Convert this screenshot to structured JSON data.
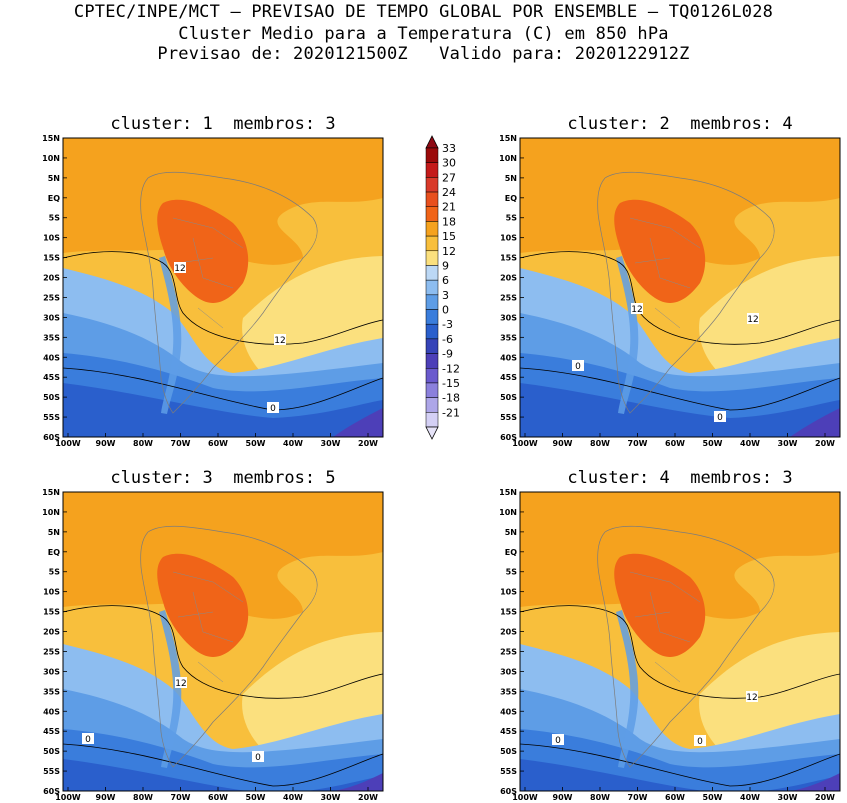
{
  "header": {
    "line1": "CPTEC/INPE/MCT — PREVISAO DE TEMPO GLOBAL POR ENSEMBLE — TQ0126L028",
    "line2": "Cluster Medio para a Temperatura (C) em 850 hPa",
    "line3": "Previsao de: 2020121500Z   Valido para: 2020122912Z"
  },
  "panels": [
    {
      "title": "cluster: 1  membros: 3",
      "contour_labels": [
        "12",
        "12",
        "0"
      ]
    },
    {
      "title": "cluster: 2  membros: 4",
      "contour_labels": [
        "12",
        "12",
        "0",
        "0"
      ]
    },
    {
      "title": "cluster: 3  membros: 5",
      "contour_labels": [
        "12",
        "0",
        "0"
      ]
    },
    {
      "title": "cluster: 4  membros: 3",
      "contour_labels": [
        "12",
        "0",
        "0"
      ]
    }
  ],
  "axes": {
    "lat_ticks": [
      "15N",
      "10N",
      "5N",
      "EQ",
      "5S",
      "10S",
      "15S",
      "20S",
      "25S",
      "30S",
      "35S",
      "40S",
      "45S",
      "50S",
      "55S",
      "60S"
    ],
    "lon_ticks": [
      "100W",
      "90W",
      "80W",
      "70W",
      "60W",
      "50W",
      "40W",
      "30W",
      "20W"
    ]
  },
  "colorbar": {
    "labels": [
      "33",
      "30",
      "27",
      "24",
      "21",
      "18",
      "15",
      "12",
      "9",
      "6",
      "3",
      "0",
      "-3",
      "-6",
      "-9",
      "-12",
      "-15",
      "-18",
      "-21"
    ],
    "colors": [
      "#9b0a0a",
      "#c41a1a",
      "#d93a2a",
      "#e8501e",
      "#f06418",
      "#f5a21e",
      "#f8bf3c",
      "#fbe07e",
      "#bcd8f5",
      "#8dbdf0",
      "#5e9de6",
      "#3a7ddc",
      "#2a5fcc",
      "#3644b8",
      "#4d3fb8",
      "#6a5acd",
      "#8b80dc",
      "#ada6e8",
      "#d4d0f5"
    ],
    "end_colors": {
      "top": "#8e0a14",
      "bottom": "#e6e3f8"
    }
  }
}
